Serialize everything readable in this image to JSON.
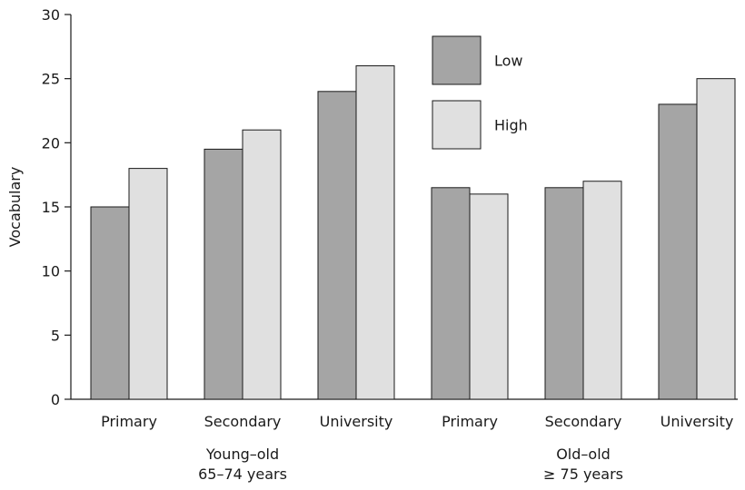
{
  "chart_data": {
    "type": "bar",
    "title": "",
    "xlabel": "",
    "ylabel": "Vocabulary",
    "ylim": [
      0,
      30
    ],
    "yticks": [
      0,
      5,
      10,
      15,
      20,
      25,
      30
    ],
    "grid": false,
    "legend_position": "top-center",
    "groups": [
      {
        "label_line1": "Young–old",
        "label_line2": "65–74 years",
        "categories": [
          "Primary",
          "Secondary",
          "University"
        ]
      },
      {
        "label_line1": "Old–old",
        "label_line2": "≥ 75 years",
        "categories": [
          "Primary",
          "Secondary",
          "University"
        ]
      }
    ],
    "categories": [
      "Primary",
      "Secondary",
      "University",
      "Primary",
      "Secondary",
      "University"
    ],
    "series": [
      {
        "name": "Low",
        "color": "#a5a5a5",
        "values": [
          15,
          19.5,
          24,
          16.5,
          16.5,
          23
        ]
      },
      {
        "name": "High",
        "color": "#e0e0e0",
        "values": [
          18,
          21,
          26,
          16,
          17,
          25
        ]
      }
    ]
  }
}
